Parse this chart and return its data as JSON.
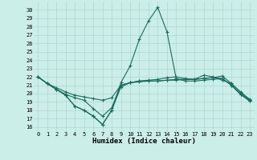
{
  "xlabel": "Humidex (Indice chaleur)",
  "bg_color": "#cceee8",
  "grid_color": "#aad8d0",
  "line_color": "#1a6b5e",
  "xlim": [
    -0.5,
    23.5
  ],
  "ylim": [
    15.5,
    31.0
  ],
  "xticks": [
    0,
    1,
    2,
    3,
    4,
    5,
    6,
    7,
    8,
    9,
    10,
    11,
    12,
    13,
    14,
    15,
    16,
    17,
    18,
    19,
    20,
    21,
    22,
    23
  ],
  "yticks": [
    16,
    17,
    18,
    19,
    20,
    21,
    22,
    23,
    24,
    25,
    26,
    27,
    28,
    29,
    30
  ],
  "line1_x": [
    0,
    1,
    2,
    3,
    4,
    5,
    6,
    7,
    8,
    9,
    10,
    11,
    12,
    13,
    14,
    15,
    16,
    17,
    18,
    19,
    20,
    21,
    22,
    23
  ],
  "line1_y": [
    22.0,
    21.2,
    20.7,
    20.2,
    19.8,
    19.6,
    19.4,
    19.2,
    19.5,
    21.0,
    21.3,
    21.4,
    21.5,
    21.5,
    21.6,
    21.7,
    21.7,
    21.7,
    21.8,
    21.9,
    22.1,
    21.2,
    20.2,
    19.3
  ],
  "line2_x": [
    0,
    1,
    2,
    3,
    4,
    5,
    6,
    7,
    8,
    9,
    10,
    11,
    12,
    13,
    14,
    15,
    16,
    17,
    18,
    19,
    20,
    21,
    22,
    23
  ],
  "line2_y": [
    22.0,
    21.2,
    20.5,
    19.8,
    18.5,
    18.0,
    17.3,
    16.3,
    18.0,
    20.8,
    21.3,
    21.5,
    21.5,
    21.5,
    21.6,
    21.6,
    21.7,
    21.7,
    21.8,
    21.9,
    21.8,
    21.0,
    19.9,
    19.1
  ],
  "line3_x": [
    0,
    1,
    2,
    3,
    4,
    5,
    6,
    7,
    8,
    9,
    10,
    11,
    12,
    13,
    14,
    15,
    16,
    17,
    18,
    19,
    20,
    21,
    22,
    23
  ],
  "line3_y": [
    22.0,
    21.2,
    20.5,
    19.8,
    18.5,
    18.0,
    17.3,
    16.3,
    18.0,
    21.3,
    23.3,
    26.5,
    28.7,
    30.3,
    27.4,
    21.8,
    21.5,
    21.5,
    21.6,
    21.7,
    21.8,
    21.0,
    19.9,
    19.1
  ],
  "line4_x": [
    0,
    1,
    2,
    3,
    4,
    5,
    6,
    7,
    8,
    9,
    10,
    11,
    12,
    13,
    14,
    15,
    16,
    17,
    18,
    19,
    20,
    21,
    22,
    23
  ],
  "line4_y": [
    22.0,
    21.2,
    20.5,
    19.9,
    19.5,
    19.2,
    18.2,
    17.3,
    18.3,
    21.0,
    21.3,
    21.5,
    21.6,
    21.7,
    21.9,
    22.0,
    21.8,
    21.7,
    22.2,
    22.0,
    21.6,
    21.2,
    20.1,
    19.2
  ]
}
